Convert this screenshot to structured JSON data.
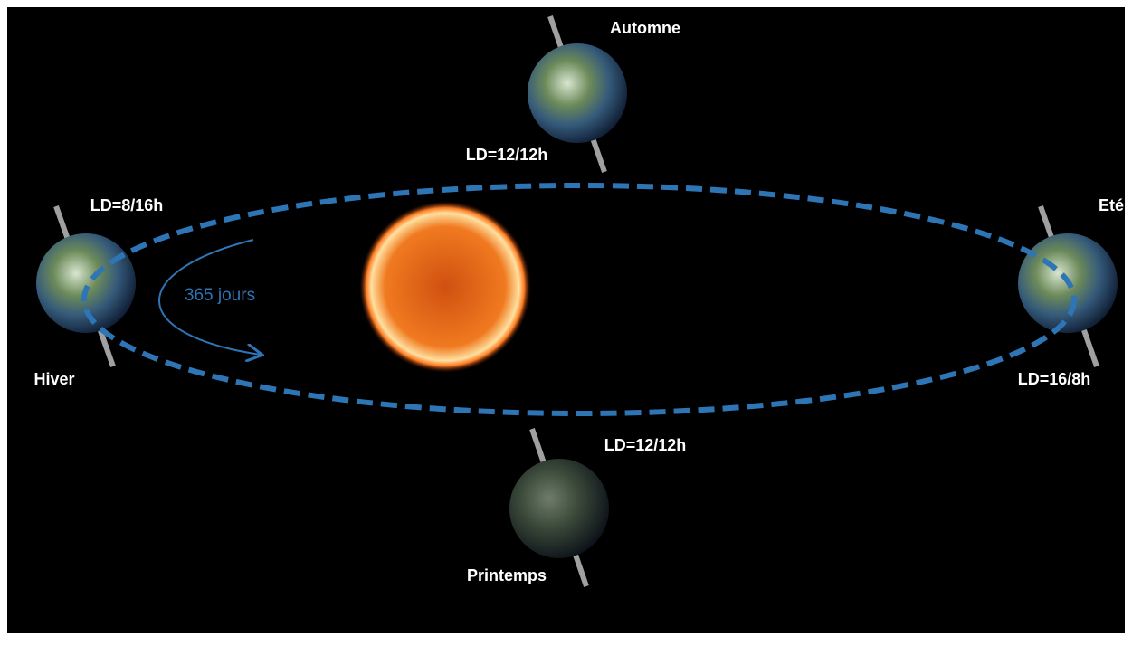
{
  "orbit": {
    "label": "365 jours"
  },
  "seasons": [
    {
      "name": "Automne",
      "daylength": "LD=12/12h"
    },
    {
      "name": "Hiver",
      "daylength": "LD=8/16h"
    },
    {
      "name": "Eté",
      "daylength": "LD=16/8h"
    },
    {
      "name": "Printemps",
      "daylength": "LD=12/12h"
    }
  ]
}
